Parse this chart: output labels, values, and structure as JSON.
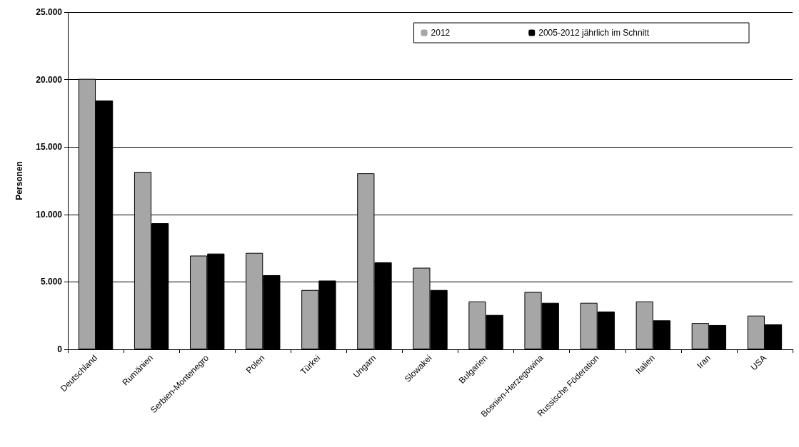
{
  "chart_data": {
    "type": "bar",
    "ylabel": "Personen",
    "categories": [
      "Deutschland",
      "Rumänien",
      "Serbien-Montenegro",
      "Polen",
      "Türkei",
      "Ungarn",
      "Slowakei",
      "Bulgarien",
      "Bosnien-Herzegowina",
      "Russische Föderation",
      "Italien",
      "Iran",
      "USA"
    ],
    "series": [
      {
        "name": "2012",
        "color": "#a6a6a6",
        "values": [
          20050,
          13150,
          6950,
          7150,
          4400,
          13050,
          6050,
          3550,
          4250,
          3450,
          3550,
          1950,
          2500
        ]
      },
      {
        "name": "2005-2012 jährlich im Schnitt",
        "color": "#000000",
        "values": [
          18450,
          9350,
          7100,
          5500,
          5100,
          6450,
          4400,
          2550,
          3450,
          2800,
          2150,
          1800,
          1850
        ]
      }
    ],
    "ylim": [
      0,
      25000
    ],
    "yticks": [
      {
        "value": 0,
        "label": "0"
      },
      {
        "value": 5000,
        "label": "5.000"
      },
      {
        "value": 10000,
        "label": "10.000"
      },
      {
        "value": 15000,
        "label": "15.000"
      },
      {
        "value": 20000,
        "label": "20.000"
      },
      {
        "value": 25000,
        "label": "25.000"
      }
    ],
    "grid": "y",
    "legend": "top right"
  }
}
